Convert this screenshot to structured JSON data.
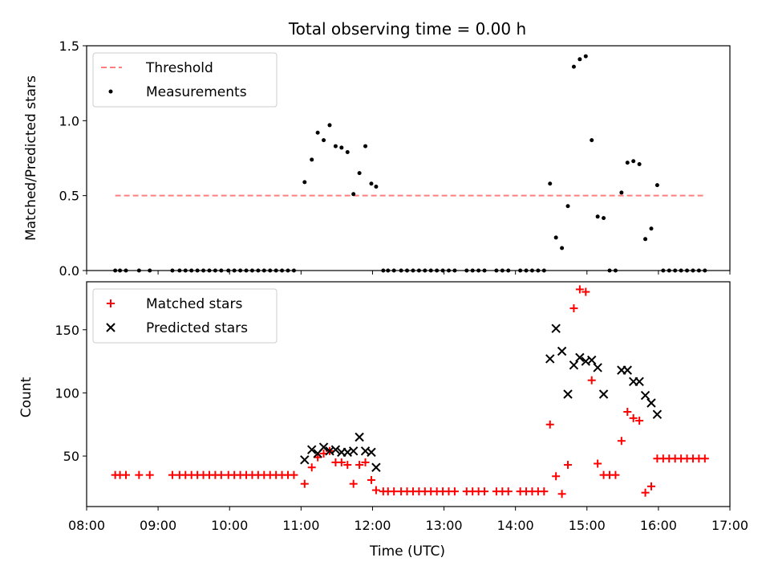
{
  "chart_data": [
    {
      "type": "scatter",
      "title": "Total observing time = 0.00 h",
      "ylabel": "Matched/Predicted stars",
      "xlim": [
        "08:00",
        "17:00"
      ],
      "ylim": [
        0,
        1.5
      ],
      "yticks": [
        "0.0",
        "0.5",
        "1.0",
        "1.5"
      ],
      "legend_position": "top-left",
      "legend": [
        "Threshold",
        "Measurements"
      ],
      "threshold": {
        "name": "Threshold",
        "value": 0.5,
        "x_range": [
          "08:24",
          "16:39"
        ],
        "color": "#ff7f7f"
      },
      "series": [
        {
          "name": "Measurements",
          "color": "#000000",
          "points": [
            [
              "08:24",
              0
            ],
            [
              "08:28",
              0
            ],
            [
              "08:33",
              0
            ],
            [
              "08:44",
              0
            ],
            [
              "08:53",
              0
            ],
            [
              "09:12",
              0
            ],
            [
              "09:18",
              0
            ],
            [
              "09:23",
              0
            ],
            [
              "09:28",
              0
            ],
            [
              "09:33",
              0
            ],
            [
              "09:38",
              0
            ],
            [
              "09:43",
              0
            ],
            [
              "09:48",
              0
            ],
            [
              "09:53",
              0
            ],
            [
              "09:59",
              0
            ],
            [
              "10:04",
              0
            ],
            [
              "10:09",
              0
            ],
            [
              "10:14",
              0
            ],
            [
              "10:19",
              0
            ],
            [
              "10:24",
              0
            ],
            [
              "10:29",
              0
            ],
            [
              "10:34",
              0
            ],
            [
              "10:39",
              0
            ],
            [
              "10:44",
              0
            ],
            [
              "10:49",
              0
            ],
            [
              "10:54",
              0
            ],
            [
              "11:03",
              0.59
            ],
            [
              "11:09",
              0.74
            ],
            [
              "11:14",
              0.92
            ],
            [
              "11:19",
              0.87
            ],
            [
              "11:24",
              0.97
            ],
            [
              "11:29",
              0.83
            ],
            [
              "11:34",
              0.82
            ],
            [
              "11:39",
              0.79
            ],
            [
              "11:44",
              0.51
            ],
            [
              "11:49",
              0.65
            ],
            [
              "11:54",
              0.83
            ],
            [
              "11:59",
              0.58
            ],
            [
              "12:03",
              0.56
            ],
            [
              "12:09",
              0
            ],
            [
              "12:13",
              0
            ],
            [
              "12:18",
              0
            ],
            [
              "12:24",
              0
            ],
            [
              "12:29",
              0
            ],
            [
              "12:34",
              0
            ],
            [
              "12:39",
              0
            ],
            [
              "12:44",
              0
            ],
            [
              "12:49",
              0
            ],
            [
              "12:54",
              0
            ],
            [
              "12:59",
              0
            ],
            [
              "13:04",
              0
            ],
            [
              "13:09",
              0
            ],
            [
              "13:19",
              0
            ],
            [
              "13:24",
              0
            ],
            [
              "13:29",
              0
            ],
            [
              "13:34",
              0
            ],
            [
              "13:44",
              0
            ],
            [
              "13:49",
              0
            ],
            [
              "13:54",
              0
            ],
            [
              "14:04",
              0
            ],
            [
              "14:09",
              0
            ],
            [
              "14:14",
              0
            ],
            [
              "14:19",
              0
            ],
            [
              "14:24",
              0
            ],
            [
              "14:29",
              0.58
            ],
            [
              "14:34",
              0.22
            ],
            [
              "14:39",
              0.15
            ],
            [
              "14:44",
              0.43
            ],
            [
              "14:49",
              1.36
            ],
            [
              "14:54",
              1.41
            ],
            [
              "14:59",
              1.43
            ],
            [
              "15:04",
              0.87
            ],
            [
              "15:09",
              0.36
            ],
            [
              "15:14",
              0.35
            ],
            [
              "15:19",
              0
            ],
            [
              "15:24",
              0
            ],
            [
              "15:29",
              0.52
            ],
            [
              "15:34",
              0.72
            ],
            [
              "15:39",
              0.73
            ],
            [
              "15:44",
              0.71
            ],
            [
              "15:49",
              0.21
            ],
            [
              "15:54",
              0.28
            ],
            [
              "15:59",
              0.57
            ],
            [
              "16:04",
              0
            ],
            [
              "16:09",
              0
            ],
            [
              "16:14",
              0
            ],
            [
              "16:19",
              0
            ],
            [
              "16:24",
              0
            ],
            [
              "16:29",
              0
            ],
            [
              "16:34",
              0
            ],
            [
              "16:39",
              0
            ]
          ]
        }
      ]
    },
    {
      "type": "scatter",
      "xlabel": "Time (UTC)",
      "ylabel": "Count",
      "xlim": [
        "08:00",
        "17:00"
      ],
      "xticks": [
        "08:00",
        "09:00",
        "10:00",
        "11:00",
        "12:00",
        "13:00",
        "14:00",
        "15:00",
        "16:00",
        "17:00"
      ],
      "ylim": [
        10,
        188
      ],
      "yticks": [
        "50",
        "100",
        "150"
      ],
      "legend_position": "top-left",
      "legend": [
        "Matched stars",
        "Predicted stars"
      ],
      "series": [
        {
          "name": "Matched stars",
          "marker": "plus",
          "color": "#ff0000",
          "points": [
            [
              "08:24",
              35
            ],
            [
              "08:28",
              35
            ],
            [
              "08:33",
              35
            ],
            [
              "08:44",
              35
            ],
            [
              "08:53",
              35
            ],
            [
              "09:12",
              35
            ],
            [
              "09:18",
              35
            ],
            [
              "09:23",
              35
            ],
            [
              "09:28",
              35
            ],
            [
              "09:33",
              35
            ],
            [
              "09:38",
              35
            ],
            [
              "09:43",
              35
            ],
            [
              "09:48",
              35
            ],
            [
              "09:53",
              35
            ],
            [
              "09:59",
              35
            ],
            [
              "10:04",
              35
            ],
            [
              "10:09",
              35
            ],
            [
              "10:14",
              35
            ],
            [
              "10:19",
              35
            ],
            [
              "10:24",
              35
            ],
            [
              "10:29",
              35
            ],
            [
              "10:34",
              35
            ],
            [
              "10:39",
              35
            ],
            [
              "10:44",
              35
            ],
            [
              "10:49",
              35
            ],
            [
              "10:54",
              35
            ],
            [
              "11:03",
              28
            ],
            [
              "11:09",
              41
            ],
            [
              "11:14",
              49
            ],
            [
              "11:19",
              52
            ],
            [
              "11:24",
              54
            ],
            [
              "11:29",
              45
            ],
            [
              "11:34",
              45
            ],
            [
              "11:39",
              43
            ],
            [
              "11:44",
              28
            ],
            [
              "11:49",
              43
            ],
            [
              "11:54",
              45
            ],
            [
              "11:59",
              31
            ],
            [
              "12:03",
              23
            ],
            [
              "12:09",
              22
            ],
            [
              "12:13",
              22
            ],
            [
              "12:18",
              22
            ],
            [
              "12:24",
              22
            ],
            [
              "12:29",
              22
            ],
            [
              "12:34",
              22
            ],
            [
              "12:39",
              22
            ],
            [
              "12:44",
              22
            ],
            [
              "12:49",
              22
            ],
            [
              "12:54",
              22
            ],
            [
              "12:59",
              22
            ],
            [
              "13:04",
              22
            ],
            [
              "13:09",
              22
            ],
            [
              "13:19",
              22
            ],
            [
              "13:24",
              22
            ],
            [
              "13:29",
              22
            ],
            [
              "13:34",
              22
            ],
            [
              "13:44",
              22
            ],
            [
              "13:49",
              22
            ],
            [
              "13:54",
              22
            ],
            [
              "14:04",
              22
            ],
            [
              "14:09",
              22
            ],
            [
              "14:14",
              22
            ],
            [
              "14:19",
              22
            ],
            [
              "14:24",
              22
            ],
            [
              "14:29",
              75
            ],
            [
              "14:34",
              34
            ],
            [
              "14:39",
              20
            ],
            [
              "14:44",
              43
            ],
            [
              "14:49",
              167
            ],
            [
              "14:54",
              182
            ],
            [
              "14:59",
              180
            ],
            [
              "15:04",
              110
            ],
            [
              "15:09",
              44
            ],
            [
              "15:14",
              35
            ],
            [
              "15:19",
              35
            ],
            [
              "15:24",
              35
            ],
            [
              "15:29",
              62
            ],
            [
              "15:34",
              85
            ],
            [
              "15:39",
              80
            ],
            [
              "15:44",
              78
            ],
            [
              "15:49",
              21
            ],
            [
              "15:54",
              26
            ],
            [
              "15:59",
              48
            ],
            [
              "16:04",
              48
            ],
            [
              "16:09",
              48
            ],
            [
              "16:14",
              48
            ],
            [
              "16:19",
              48
            ],
            [
              "16:24",
              48
            ],
            [
              "16:29",
              48
            ],
            [
              "16:34",
              48
            ],
            [
              "16:39",
              48
            ]
          ]
        },
        {
          "name": "Predicted stars",
          "marker": "x",
          "color": "#000000",
          "points": [
            [
              "11:03",
              47
            ],
            [
              "11:09",
              55
            ],
            [
              "11:14",
              52
            ],
            [
              "11:19",
              57
            ],
            [
              "11:24",
              54
            ],
            [
              "11:29",
              55
            ],
            [
              "11:34",
              53
            ],
            [
              "11:39",
              53
            ],
            [
              "11:44",
              54
            ],
            [
              "11:49",
              65
            ],
            [
              "11:54",
              54
            ],
            [
              "11:59",
              53
            ],
            [
              "12:03",
              41
            ],
            [
              "14:29",
              127
            ],
            [
              "14:34",
              151
            ],
            [
              "14:39",
              133
            ],
            [
              "14:44",
              99
            ],
            [
              "14:49",
              122
            ],
            [
              "14:54",
              128
            ],
            [
              "14:59",
              125
            ],
            [
              "15:04",
              126
            ],
            [
              "15:09",
              120
            ],
            [
              "15:14",
              99
            ],
            [
              "15:29",
              118
            ],
            [
              "15:34",
              118
            ],
            [
              "15:39",
              109
            ],
            [
              "15:44",
              109
            ],
            [
              "15:49",
              98
            ],
            [
              "15:54",
              92
            ],
            [
              "15:59",
              83
            ]
          ]
        }
      ]
    }
  ]
}
